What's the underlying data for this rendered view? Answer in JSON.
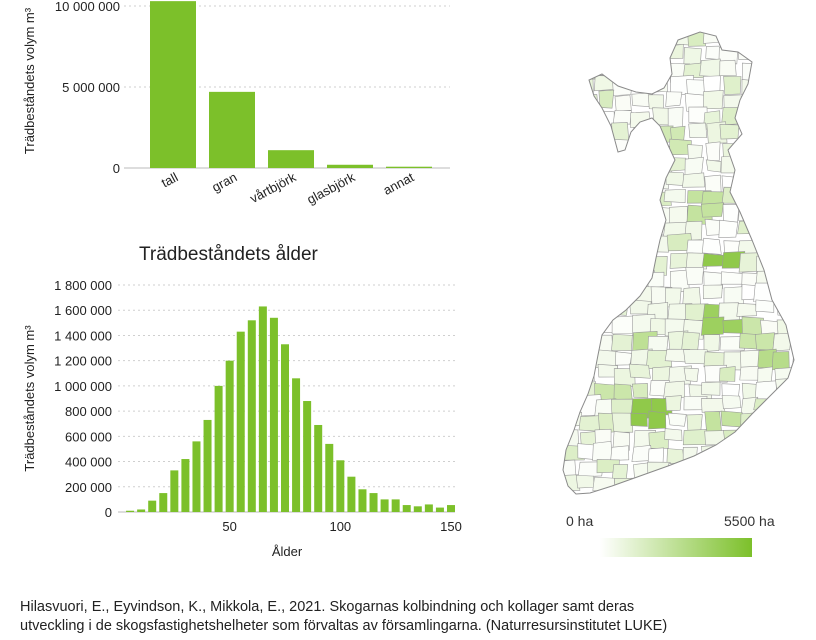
{
  "colors": {
    "bar": "#7cc02a",
    "grid": "#cfcfcf",
    "map_max": "#7cc02a",
    "map_min": "#ffffff",
    "map_border": "#9a9a9a"
  },
  "chart_data": [
    {
      "type": "bar",
      "title": "",
      "ylabel": "Trädbeståndets volym m³",
      "xlabel": "",
      "categories": [
        "tall",
        "gran",
        "vårtbjörk",
        "glasbjörk",
        "annat"
      ],
      "values": [
        10300000,
        4700000,
        1100000,
        200000,
        80000
      ],
      "ylim": [
        0,
        10000000
      ],
      "yticks": [
        0,
        5000000,
        10000000
      ],
      "ytick_labels": [
        "0",
        "5 000 000",
        "10 000 000"
      ],
      "grid": true
    },
    {
      "type": "bar",
      "title": "Trädbeståndets ålder",
      "ylabel": "Trädbeståndets volym m³",
      "xlabel": "Ålder",
      "x": [
        5,
        10,
        15,
        20,
        25,
        30,
        35,
        40,
        45,
        50,
        55,
        60,
        65,
        70,
        75,
        80,
        85,
        90,
        95,
        100,
        105,
        110,
        115,
        120,
        125,
        130,
        135,
        140,
        145,
        150
      ],
      "values": [
        10000,
        20000,
        90000,
        150000,
        330000,
        420000,
        560000,
        730000,
        1000000,
        1200000,
        1430000,
        1520000,
        1630000,
        1540000,
        1330000,
        1060000,
        880000,
        690000,
        540000,
        410000,
        280000,
        180000,
        150000,
        100000,
        100000,
        55000,
        45000,
        60000,
        35000,
        55000
      ],
      "ylim": [
        0,
        1800000
      ],
      "xlim": [
        0,
        150
      ],
      "yticks": [
        0,
        200000,
        400000,
        600000,
        800000,
        1000000,
        1200000,
        1400000,
        1600000,
        1800000
      ],
      "ytick_labels": [
        "0",
        "200 000",
        "400 000",
        "600 000",
        "800 000",
        "1 000 000",
        "1 200 000",
        "1 400 000",
        "1 600 000",
        "1 800 000"
      ],
      "xticks": [
        50,
        100,
        150
      ],
      "xtick_labels": [
        "50",
        "100",
        "150"
      ],
      "grid": true
    }
  ],
  "map": {
    "legend_min_label": "0 ha",
    "legend_max_label": "5500 ha",
    "value_range_ha": [
      0,
      5500
    ]
  },
  "citation": {
    "line1": "Hilasvuori, E., Eyvindson, K., Mikkola, E., 2021. Skogarnas kolbindning och kollager samt deras",
    "line2": "utveckling i de skogsfastighetshelheter som förvaltas av församlingarna. (Naturresursinstitutet LUKE)"
  }
}
